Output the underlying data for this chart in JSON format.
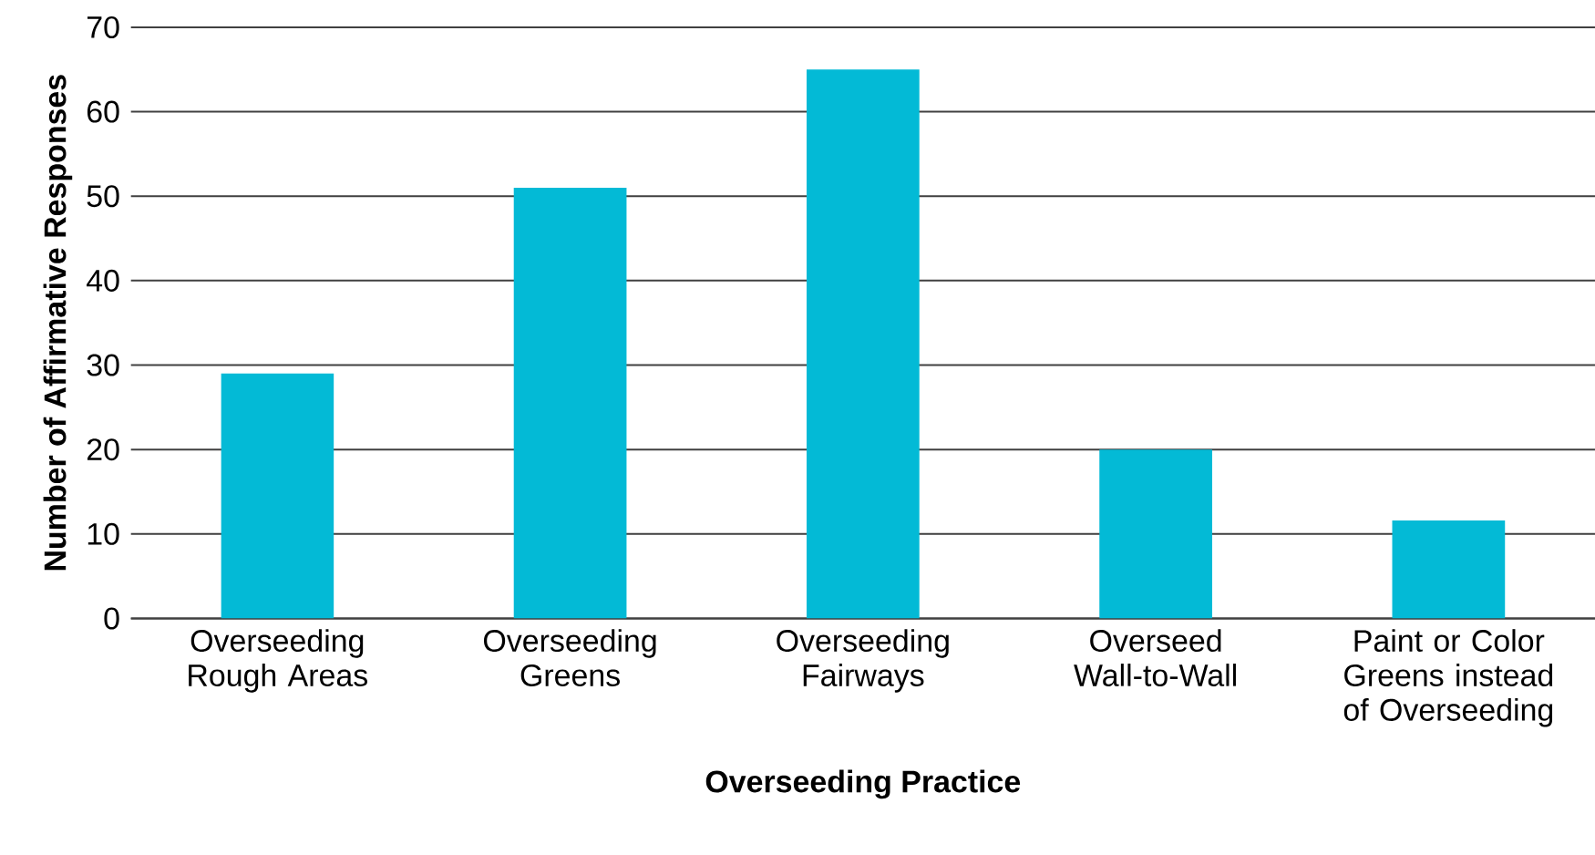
{
  "chart_data": {
    "type": "bar",
    "xlabel": "Overseeding Practice",
    "ylabel": "Number of Affirmative Responses",
    "categories": [
      "Overseeding Rough Areas",
      "Overseeding Greens",
      "Overseeding Fairways",
      "Overseed Wall-to-Wall",
      "Paint or Color Greens instead of Overseeding"
    ],
    "values": [
      29,
      51,
      65,
      20,
      11.6
    ],
    "color": "#03bad6",
    "ylim": [
      0,
      70
    ],
    "yticks": [
      0,
      10,
      20,
      30,
      40,
      50,
      60,
      70
    ],
    "grid": "y"
  }
}
